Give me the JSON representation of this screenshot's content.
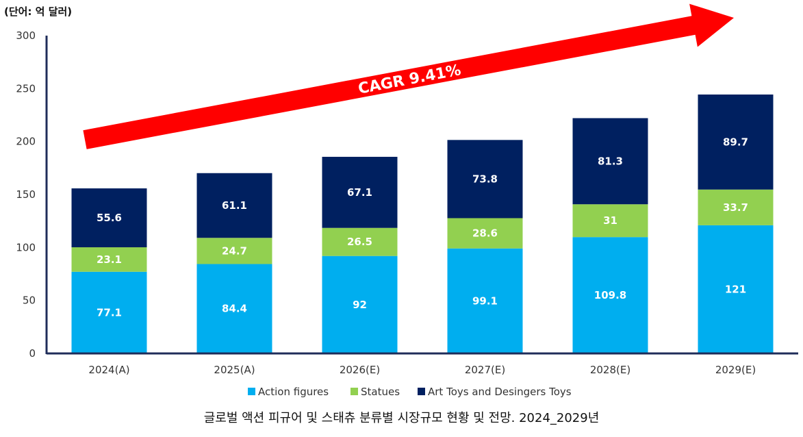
{
  "unit_label": "(단어: 억 달러)",
  "caption": "글로벌 액션 피규어 및 스태츄 분류별 시장규모 현황 및 전망. 2024_2029년",
  "annotation": "CAGR 9.41%",
  "colors": {
    "action_figures": "#00AEEF",
    "statues": "#92D050",
    "art_toys": "#002060",
    "arrow": "#FF0000",
    "axis": "#1F2D5A"
  },
  "chart_data": {
    "type": "bar",
    "stacked": true,
    "categories": [
      "2024(A)",
      "2025(A)",
      "2026(E)",
      "2027(E)",
      "2028(E)",
      "2029(E)"
    ],
    "series": [
      {
        "name": "Action figures",
        "values": [
          77.1,
          84.4,
          92,
          99.1,
          109.8,
          121
        ]
      },
      {
        "name": "Statues",
        "values": [
          23.1,
          24.7,
          26.5,
          28.6,
          31,
          33.7
        ]
      },
      {
        "name": "Art Toys and Desingers Toys",
        "values": [
          55.6,
          61.1,
          67.1,
          73.8,
          81.3,
          89.7
        ]
      }
    ],
    "ylim": [
      0,
      300
    ],
    "yticks": [
      0,
      50,
      100,
      150,
      200,
      250,
      300
    ],
    "grid": false,
    "legend": "bottom"
  }
}
